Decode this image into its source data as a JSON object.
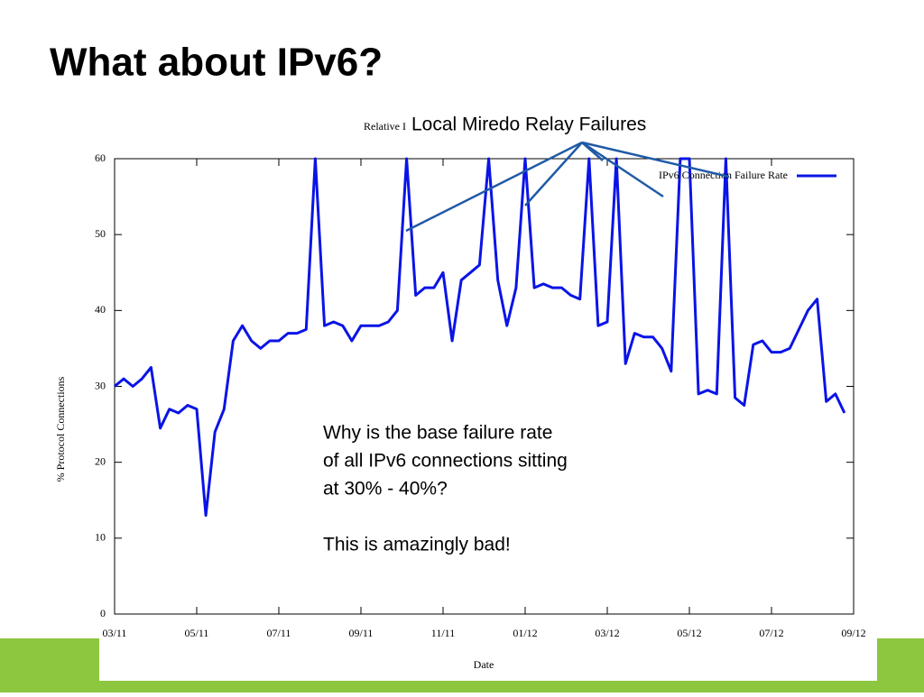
{
  "slide_title": "What about IPv6?",
  "chart_data": {
    "type": "line",
    "title": "Relative I",
    "annotation_title": "Local Miredo Relay Failures",
    "annotation_text": [
      "Why is the base failure rate",
      "of all IPv6 connections sitting",
      "at 30% - 40%?",
      "",
      "This is amazingly bad!"
    ],
    "x_label": "Date",
    "y_label": "% Protocol Connections",
    "categories": [
      "03/11",
      null,
      null,
      null,
      null,
      null,
      null,
      null,
      null,
      "05/11",
      null,
      null,
      null,
      null,
      null,
      null,
      null,
      null,
      "07/11",
      null,
      null,
      null,
      null,
      null,
      null,
      null,
      null,
      "09/11",
      null,
      null,
      null,
      null,
      null,
      null,
      null,
      null,
      "11/11",
      null,
      null,
      null,
      null,
      null,
      null,
      null,
      null,
      "01/12",
      null,
      null,
      null,
      null,
      null,
      null,
      null,
      null,
      "03/12",
      null,
      null,
      null,
      null,
      null,
      null,
      null,
      null,
      "05/12",
      null,
      null,
      null,
      null,
      null,
      null,
      null,
      null,
      "07/12",
      null,
      null,
      null,
      null,
      null,
      null,
      null,
      null,
      "09/12"
    ],
    "series": [
      {
        "name": "IPv6 Connection Failure Rate",
        "color": "#0a14e6",
        "values": [
          30,
          31,
          30,
          31,
          32.5,
          24.5,
          27,
          26.5,
          27.5,
          27,
          13,
          24,
          27,
          36,
          38,
          36,
          35,
          36,
          36,
          37,
          37,
          37.5,
          60,
          38,
          38.5,
          38,
          36,
          38,
          38,
          38,
          38.5,
          40,
          60,
          42,
          43,
          43,
          45,
          36,
          44,
          45,
          46,
          60,
          44,
          38,
          43,
          60,
          43,
          43.5,
          43,
          43,
          42,
          41.5,
          60,
          38,
          38.5,
          60,
          33,
          37,
          36.5,
          36.5,
          35,
          32,
          60,
          60,
          29,
          29.5,
          29,
          60,
          28.5,
          27.5,
          35.5,
          36,
          34.5,
          34.5,
          35,
          37.5,
          40,
          41.5,
          28,
          29,
          26.5,
          null
        ]
      }
    ],
    "ylim": [
      0,
      60
    ],
    "yticks": [
      0,
      10,
      20,
      30,
      40,
      50,
      60
    ],
    "legend": "top-right"
  }
}
